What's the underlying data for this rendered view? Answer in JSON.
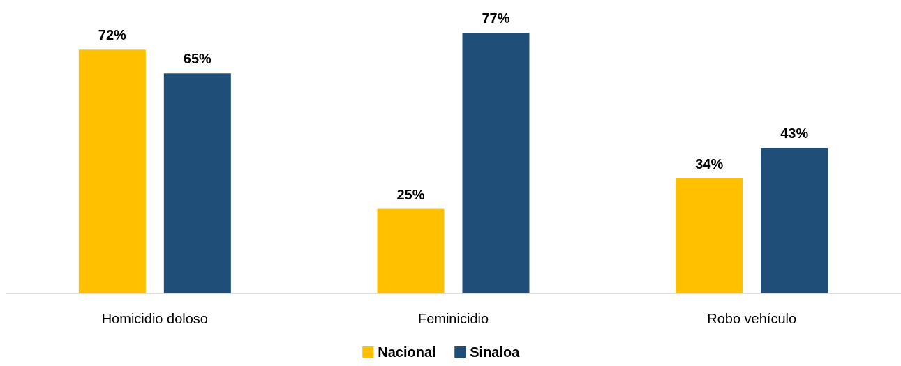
{
  "chart_data": {
    "type": "bar",
    "categories": [
      "Homicidio doloso",
      "Feminicidio",
      "Robo vehículo"
    ],
    "series": [
      {
        "name": "Nacional",
        "color": "#ffc000",
        "values": [
          72,
          25,
          34
        ],
        "value_labels": [
          "72%",
          "25%",
          "34%"
        ]
      },
      {
        "name": "Sinaloa",
        "color": "#1f4e79",
        "values": [
          65,
          77,
          43
        ],
        "value_labels": [
          "65%",
          "77%",
          "43%"
        ]
      }
    ],
    "legend": "bottom"
  }
}
